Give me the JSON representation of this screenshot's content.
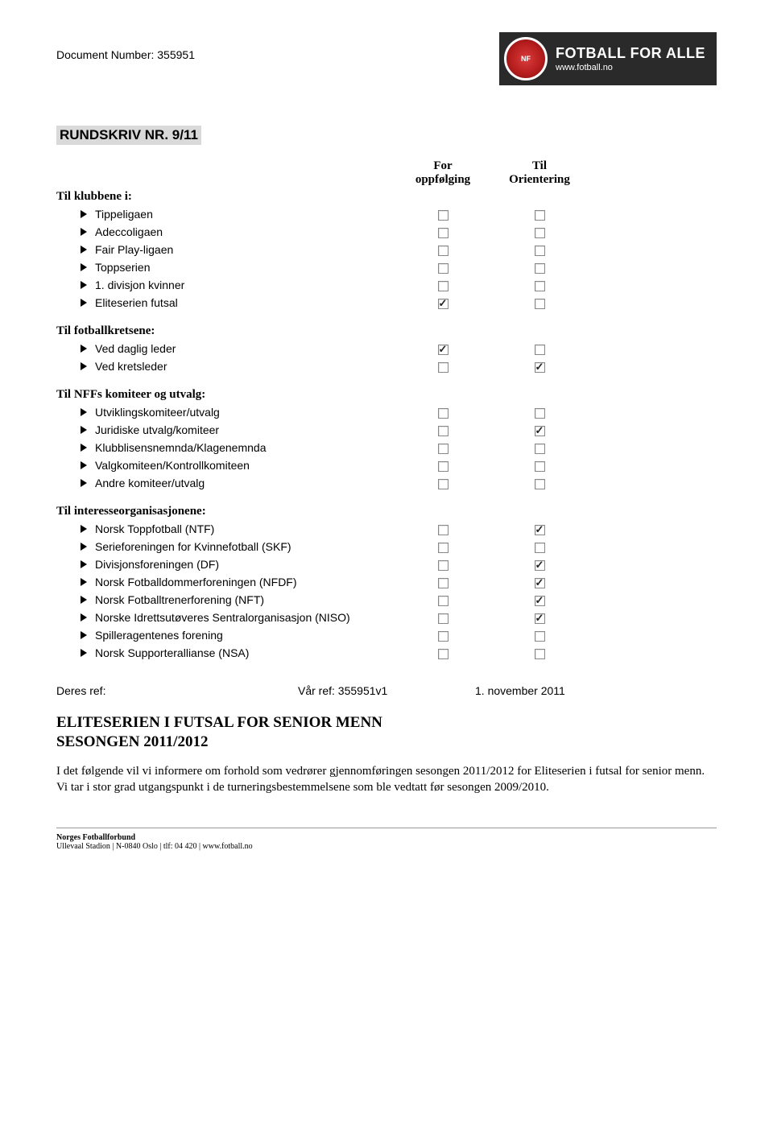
{
  "doc_number_label": "Document Number: 355951",
  "brand": {
    "line1": "FOTBALL",
    "line2": "FOR ALLE",
    "url": "www.fotball.no",
    "logo_abbr": "NF"
  },
  "rundskriv": "RUNDSKRIV NR. 9/11",
  "col_headers": {
    "col1_l1": "For",
    "col1_l2": "oppfølging",
    "col2_l1": "Til",
    "col2_l2": "Orientering"
  },
  "colors": {
    "banner_bg": "#2a2a2a",
    "highlight_bg": "#d9d9d9",
    "page_bg": "#ffffff",
    "text": "#000000"
  },
  "sections": [
    {
      "title": "Til klubbene i:",
      "items": [
        {
          "label": "Tippeligaen",
          "c1": false,
          "c2": false
        },
        {
          "label": "Adeccoligaen",
          "c1": false,
          "c2": false
        },
        {
          "label": "Fair Play-ligaen",
          "c1": false,
          "c2": false
        },
        {
          "label": "Toppserien",
          "c1": false,
          "c2": false
        },
        {
          "label": "1. divisjon kvinner",
          "c1": false,
          "c2": false
        },
        {
          "label": "Eliteserien futsal",
          "c1": true,
          "c2": false
        }
      ]
    },
    {
      "title": "Til fotballkretsene:",
      "items": [
        {
          "label": "Ved daglig leder",
          "c1": true,
          "c2": false
        },
        {
          "label": "Ved kretsleder",
          "c1": false,
          "c2": true
        }
      ]
    },
    {
      "title": "Til NFFs komiteer og utvalg:",
      "items": [
        {
          "label": "Utviklingskomiteer/utvalg",
          "c1": false,
          "c2": false
        },
        {
          "label": "Juridiske utvalg/komiteer",
          "c1": false,
          "c2": true
        },
        {
          "label": "Klubblisensnemnda/Klagenemnda",
          "c1": false,
          "c2": false
        },
        {
          "label": "Valgkomiteen/Kontrollkomiteen",
          "c1": false,
          "c2": false
        },
        {
          "label": "Andre komiteer/utvalg",
          "c1": false,
          "c2": false
        }
      ]
    },
    {
      "title": "Til interesseorganisasjonene:",
      "items": [
        {
          "label": "Norsk Toppfotball (NTF)",
          "c1": false,
          "c2": true
        },
        {
          "label": "Serieforeningen for Kvinnefotball (SKF)",
          "c1": false,
          "c2": false
        },
        {
          "label": "Divisjonsforeningen (DF)",
          "c1": false,
          "c2": true
        },
        {
          "label": "Norsk Fotballdommerforeningen (NFDF)",
          "c1": false,
          "c2": true
        },
        {
          "label": "Norsk Fotballtrenerforening (NFT)",
          "c1": false,
          "c2": true
        },
        {
          "label": "Norske Idrettsutøveres Sentralorganisasjon (NISO)",
          "c1": false,
          "c2": true
        },
        {
          "label": "Spilleragentenes forening",
          "c1": false,
          "c2": false
        },
        {
          "label": "Norsk Supporterallianse (NSA)",
          "c1": false,
          "c2": false
        }
      ]
    }
  ],
  "refs": {
    "deres": "Deres ref:",
    "vaar": "Vår ref: 355951v1",
    "date": "1.  november  2011"
  },
  "main_title_l1": "ELITESERIEN I FUTSAL FOR SENIOR MENN",
  "main_title_l2": "SESONGEN 2011/2012",
  "body": "I det følgende vil vi informere om forhold som vedrører gjennomføringen sesongen 2011/2012 for Eliteserien i futsal for senior menn. Vi tar i stor grad utgangspunkt i de turneringsbestemmelsene som ble vedtatt før sesongen 2009/2010.",
  "footer": {
    "l1": "Norges Fotballforbund",
    "l2": "Ullevaal Stadion | N-0840 Oslo | tlf: 04 420 | www.fotball.no"
  }
}
